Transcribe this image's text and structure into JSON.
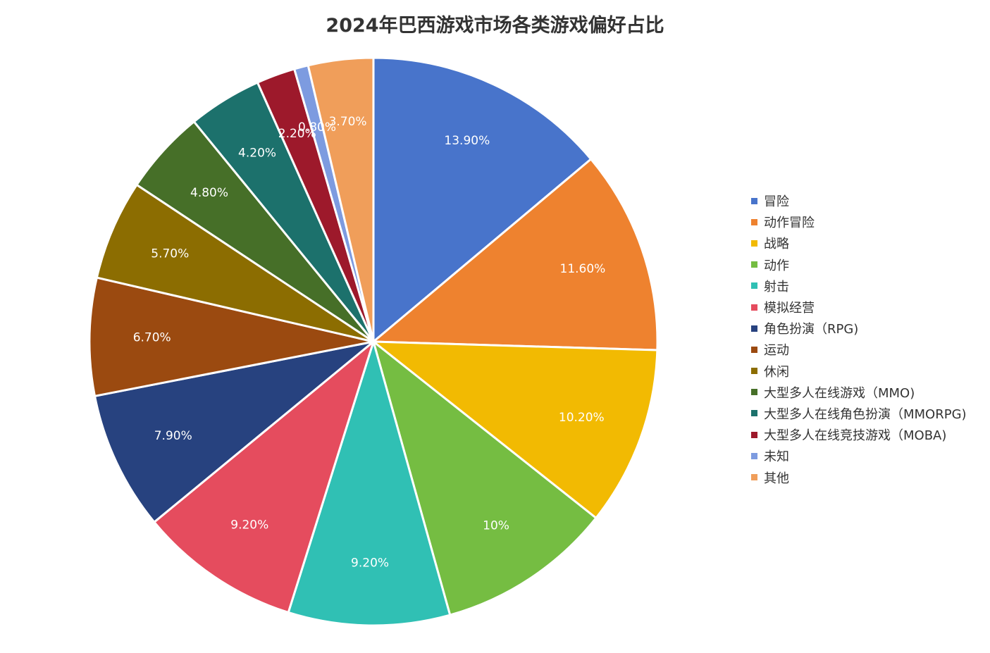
{
  "chart_data": {
    "type": "pie",
    "title": "2024年巴西游戏市场各类游戏偏好占比",
    "legend_position": "right",
    "slices": [
      {
        "name": "冒险",
        "value": 13.9,
        "label": "13.90%",
        "color": "#4874cb"
      },
      {
        "name": "动作冒险",
        "value": 11.6,
        "label": "11.60%",
        "color": "#ee822f"
      },
      {
        "name": "战略",
        "value": 10.2,
        "label": "10.20%",
        "color": "#f2ba02"
      },
      {
        "name": "动作",
        "value": 10.0,
        "label": "10%",
        "color": "#75bd42"
      },
      {
        "name": "射击",
        "value": 9.2,
        "label": "9.20%",
        "color": "#30c0b4"
      },
      {
        "name": "模拟经营",
        "value": 9.2,
        "label": "9.20%",
        "color": "#e54c5e"
      },
      {
        "name": "角色扮演（RPG)",
        "value": 7.9,
        "label": "7.90%",
        "color": "#27427f"
      },
      {
        "name": "运动",
        "value": 6.7,
        "label": "6.70%",
        "color": "#9b4a10"
      },
      {
        "name": "休闲",
        "value": 5.7,
        "label": "5.70%",
        "color": "#8c6d01"
      },
      {
        "name": "大型多人在线游戏（MMO)",
        "value": 4.8,
        "label": "4.80%",
        "color": "#466f28"
      },
      {
        "name": "大型多人在线角色扮演（MMORPG)",
        "value": 4.2,
        "label": "4.20%",
        "color": "#1c716c"
      },
      {
        "name": "大型多人在线竞技游戏（MOBA)",
        "value": 2.2,
        "label": "2.20%",
        "color": "#9d192b"
      },
      {
        "name": "未知",
        "value": 0.8,
        "label": "0.80%",
        "color": "#7d9be0"
      },
      {
        "name": "其他",
        "value": 3.7,
        "label": "3.70%",
        "color": "#f09e5a"
      }
    ]
  }
}
